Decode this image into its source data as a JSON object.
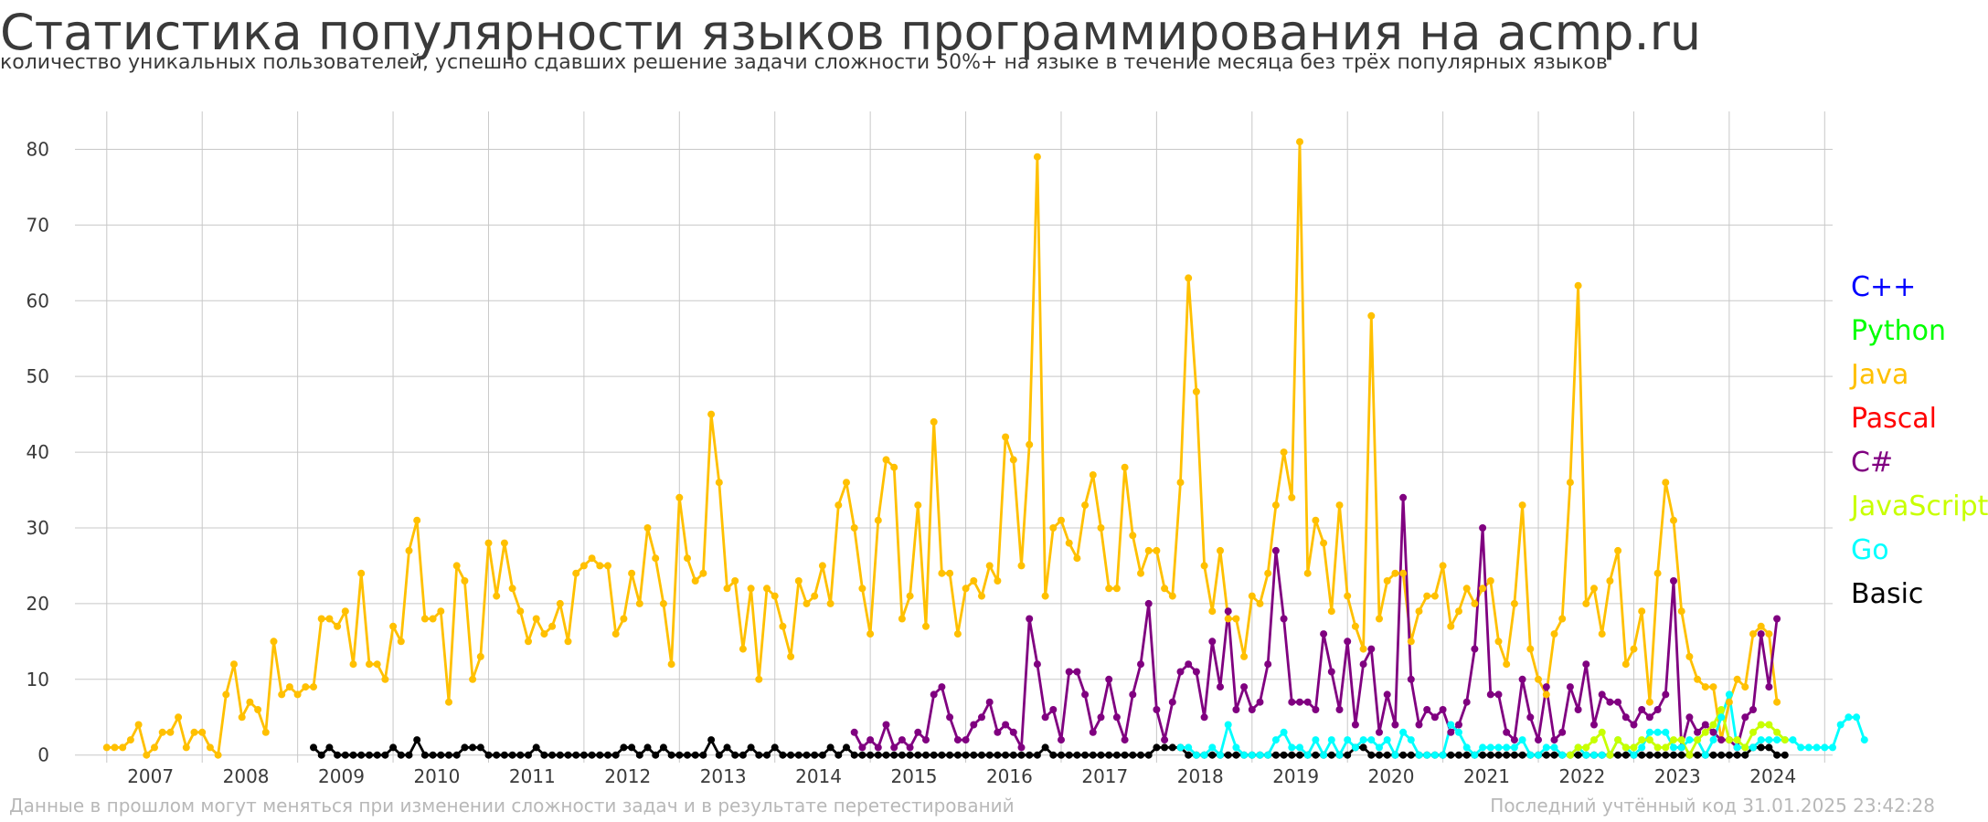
{
  "chart_data": {
    "type": "line",
    "title": "Статистика популярности языков программирования на acmp.ru",
    "subtitle": "количество уникальных пользователей, успешно сдавших решение задачи сложности 50%+ на языке в течение месяца без трёх популярных языков",
    "xlabel": "",
    "ylabel": "",
    "x_ticks": [
      "2007",
      "2008",
      "2009",
      "2010",
      "2011",
      "2012",
      "2013",
      "2014",
      "2015",
      "2016",
      "2017",
      "2018",
      "2019",
      "2020",
      "2021",
      "2022",
      "2023",
      "2024"
    ],
    "y_ticks": [
      0,
      10,
      20,
      30,
      40,
      50,
      60,
      70,
      80
    ],
    "ylim": [
      -1,
      85
    ],
    "xlim": [
      "2006-09",
      "2025-02"
    ],
    "grid": true,
    "legend_position": "right",
    "series": [
      {
        "name": "C++",
        "color": "#0000ff",
        "start": "2025-01",
        "values": []
      },
      {
        "name": "Python",
        "color": "#00ff00",
        "start": "2025-01",
        "values": []
      },
      {
        "name": "Java",
        "color": "#ffc000",
        "start": "2007-01",
        "values": [
          1,
          1,
          1,
          2,
          4,
          0,
          1,
          3,
          3,
          5,
          1,
          3,
          3,
          1,
          0,
          8,
          12,
          5,
          7,
          6,
          3,
          15,
          8,
          9,
          8,
          9,
          9,
          18,
          18,
          17,
          19,
          12,
          24,
          12,
          12,
          10,
          17,
          15,
          27,
          31,
          18,
          18,
          19,
          7,
          25,
          23,
          10,
          13,
          28,
          21,
          28,
          22,
          19,
          15,
          18,
          16,
          17,
          20,
          15,
          24,
          25,
          26,
          25,
          25,
          16,
          18,
          24,
          20,
          30,
          26,
          20,
          12,
          34,
          26,
          23,
          24,
          45,
          36,
          22,
          23,
          14,
          22,
          10,
          22,
          21,
          17,
          13,
          23,
          20,
          21,
          25,
          20,
          33,
          36,
          30,
          22,
          16,
          31,
          39,
          38,
          18,
          21,
          33,
          17,
          44,
          24,
          24,
          16,
          22,
          23,
          21,
          25,
          23,
          42,
          39,
          25,
          41,
          79,
          21,
          30,
          31,
          28,
          26,
          33,
          37,
          30,
          22,
          22,
          38,
          29,
          24,
          27,
          27,
          22,
          21,
          36,
          63,
          48,
          25,
          19,
          27,
          18,
          18,
          13,
          21,
          20,
          24,
          33,
          40,
          34,
          81,
          24,
          31,
          28,
          19,
          33,
          21,
          17,
          14,
          58,
          18,
          23,
          24,
          24,
          15,
          19,
          21,
          21,
          25,
          17,
          19,
          22,
          20,
          22,
          23,
          15,
          12,
          20,
          33,
          14,
          10,
          8,
          16,
          18,
          36,
          62,
          20,
          22,
          16,
          23,
          27,
          12,
          14,
          19,
          7,
          24,
          36,
          31,
          19,
          13,
          10,
          9,
          9,
          2,
          7,
          10,
          9,
          16,
          17,
          16,
          7
        ]
      },
      {
        "name": "Pascal",
        "color": "#ff0000",
        "start": "2025-01",
        "values": []
      },
      {
        "name": "C#",
        "color": "#800080",
        "start": "2014-11",
        "values": [
          3,
          1,
          2,
          1,
          4,
          1,
          2,
          1,
          3,
          2,
          8,
          9,
          5,
          2,
          2,
          4,
          5,
          7,
          3,
          4,
          3,
          1,
          18,
          12,
          5,
          6,
          2,
          11,
          11,
          8,
          3,
          5,
          10,
          5,
          2,
          8,
          12,
          20,
          6,
          2,
          7,
          11,
          12,
          11,
          5,
          15,
          9,
          19,
          6,
          9,
          6,
          7,
          12,
          27,
          18,
          7,
          7,
          7,
          6,
          16,
          11,
          6,
          15,
          4,
          12,
          14,
          3,
          8,
          4,
          34,
          10,
          4,
          6,
          5,
          6,
          3,
          4,
          7,
          14,
          30,
          8,
          8,
          3,
          2,
          10,
          5,
          2,
          9,
          2,
          3,
          9,
          6,
          12,
          4,
          8,
          7,
          7,
          5,
          4,
          6,
          5,
          6,
          8,
          23,
          1,
          5,
          3,
          4,
          3,
          2,
          2,
          1,
          5,
          6,
          16,
          9,
          18
        ]
      },
      {
        "name": "JavaScript",
        "color": "#c8ff00",
        "start": "2022-05",
        "values": [
          0,
          1,
          1,
          2,
          3,
          0,
          2,
          1,
          1,
          2,
          2,
          1,
          1,
          2,
          2,
          0,
          2,
          3,
          4,
          6,
          2,
          2,
          1,
          3,
          4,
          4,
          3,
          2
        ]
      },
      {
        "name": "Go",
        "color": "#00ffff",
        "start": "2018-04",
        "values": [
          1,
          1,
          0,
          0,
          1,
          0,
          4,
          1,
          0,
          0,
          0,
          0,
          2,
          3,
          1,
          1,
          0,
          2,
          0,
          2,
          0,
          2,
          1,
          2,
          2,
          1,
          2,
          0,
          3,
          2,
          0,
          0,
          0,
          0,
          4,
          3,
          1,
          0,
          1,
          1,
          1,
          1,
          1,
          2,
          0,
          0,
          1,
          1,
          0,
          0,
          1,
          0,
          0,
          0,
          0,
          2,
          1,
          0,
          1,
          3,
          3,
          3,
          1,
          1,
          2,
          2,
          0,
          2,
          5,
          8,
          1,
          1,
          1,
          2,
          2,
          2,
          2,
          2,
          1,
          1,
          1,
          1,
          1,
          4,
          5,
          5,
          2
        ]
      },
      {
        "name": "Basic",
        "color": "#000000",
        "start": "2009-03",
        "values": [
          1,
          0,
          1,
          0,
          0,
          0,
          0,
          0,
          0,
          0,
          1,
          0,
          0,
          2,
          0,
          0,
          0,
          0,
          0,
          1,
          1,
          1,
          0,
          0,
          0,
          0,
          0,
          0,
          1,
          0,
          0,
          0,
          0,
          0,
          0,
          0,
          0,
          0,
          0,
          1,
          1,
          0,
          1,
          0,
          1,
          0,
          0,
          0,
          0,
          0,
          2,
          0,
          1,
          0,
          0,
          1,
          0,
          0,
          1,
          0,
          0,
          0,
          0,
          0,
          0,
          1,
          0,
          1,
          0,
          0,
          0,
          0,
          0,
          0,
          0,
          0,
          0,
          0,
          0,
          0,
          0,
          0,
          0,
          0,
          0,
          0,
          0,
          0,
          0,
          0,
          0,
          0,
          1,
          0,
          0,
          0,
          0,
          0,
          0,
          0,
          0,
          0,
          0,
          0,
          0,
          0,
          1,
          1,
          1,
          1,
          0,
          0,
          0,
          0,
          0,
          0,
          0,
          0,
          0,
          0,
          0,
          0,
          0,
          0,
          0,
          0,
          0,
          0,
          0,
          0,
          0,
          1,
          1,
          0,
          0,
          0,
          0,
          0,
          0,
          0,
          0,
          0,
          0,
          0,
          0,
          0,
          0,
          0,
          0,
          0,
          0,
          0,
          0,
          0,
          0,
          0,
          0,
          0,
          0,
          0,
          0,
          0,
          0,
          0,
          0,
          0,
          0,
          0,
          0,
          0,
          0,
          0,
          0,
          0,
          0,
          0,
          0,
          0,
          0,
          0,
          0,
          1,
          1,
          1,
          0,
          0
        ]
      }
    ]
  },
  "footnote_left": "Данные в прошлом могут меняться при изменении сложности задач и в результате перетестирований",
  "footnote_right": "Последний учтённый код 31.01.2025 23:42:28"
}
